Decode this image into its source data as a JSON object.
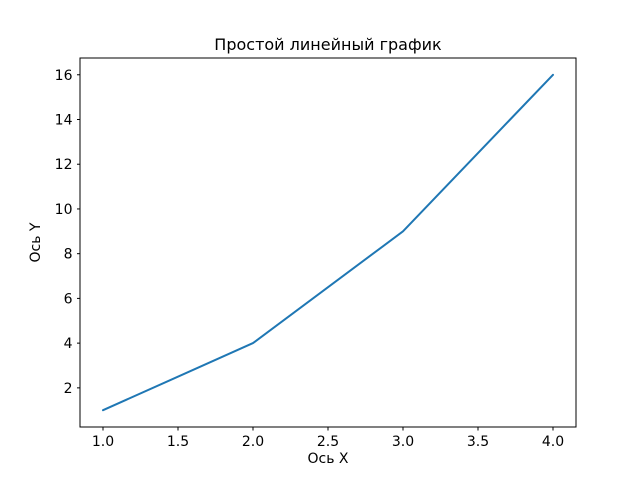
{
  "figure": {
    "background": "#ffffff",
    "frame_color": "#000000"
  },
  "chart_data": {
    "type": "line",
    "title": "Простой линейный график",
    "xlabel": "Ось X",
    "ylabel": "Ось Y",
    "x": [
      1,
      2,
      3,
      4
    ],
    "y": [
      1,
      4,
      9,
      16
    ],
    "xlim": [
      0.85,
      4.15
    ],
    "ylim": [
      0.25,
      16.75
    ],
    "xticks": {
      "values": [
        1.0,
        1.5,
        2.0,
        2.5,
        3.0,
        3.5,
        4.0
      ],
      "labels": [
        "1.0",
        "1.5",
        "2.0",
        "2.5",
        "3.0",
        "3.5",
        "4.0"
      ]
    },
    "yticks": {
      "values": [
        2,
        4,
        6,
        8,
        10,
        12,
        14,
        16
      ],
      "labels": [
        "2",
        "4",
        "6",
        "8",
        "10",
        "12",
        "14",
        "16"
      ]
    },
    "line_color": "#1f77b4",
    "line_width": 2,
    "grid": false,
    "legend": null
  }
}
